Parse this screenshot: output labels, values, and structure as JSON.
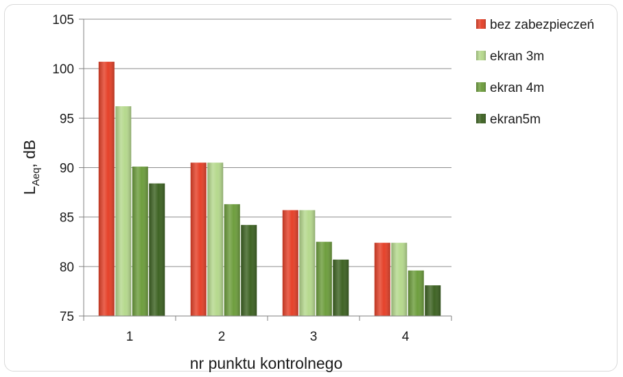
{
  "chart_data": {
    "type": "bar",
    "categories": [
      "1",
      "2",
      "3",
      "4"
    ],
    "series": [
      {
        "name": "bez zabezpieczeń",
        "values": [
          100.7,
          90.5,
          85.7,
          82.4
        ],
        "color": "#e5422a"
      },
      {
        "name": "ekran 3m",
        "values": [
          96.2,
          90.5,
          85.7,
          82.4
        ],
        "color": "#b6d98e"
      },
      {
        "name": "ekran 4m",
        "values": [
          90.1,
          86.3,
          82.5,
          79.6
        ],
        "color": "#6e9e3e"
      },
      {
        "name": "ekran5m",
        "values": [
          88.4,
          84.2,
          80.7,
          78.1
        ],
        "color": "#3f6424"
      }
    ],
    "xlabel": "nr punktu kontrolnego",
    "ylabel": "L",
    "ylabel_sub": "Aeq",
    "ylabel_suffix": ", dB",
    "ylim": [
      75,
      105
    ],
    "yticks": [
      75,
      80,
      85,
      90,
      95,
      100,
      105
    ],
    "grid": true,
    "legend_position": "top-right"
  }
}
